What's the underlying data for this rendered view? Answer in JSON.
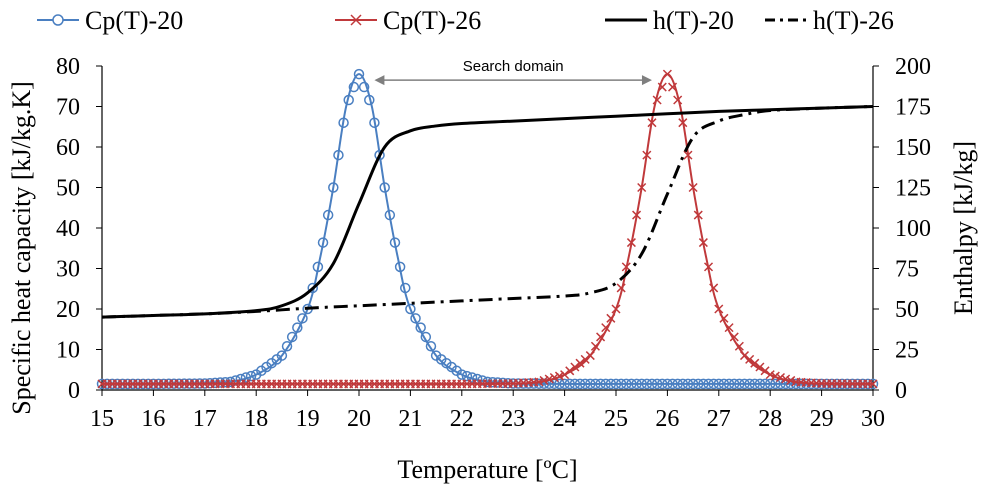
{
  "chart_data": {
    "type": "line",
    "x_axis": {
      "label": "Temperature [ºC]",
      "range": [
        15,
        30
      ],
      "ticks": [
        15,
        16,
        17,
        18,
        19,
        20,
        21,
        22,
        23,
        24,
        25,
        26,
        27,
        28,
        29,
        30
      ],
      "tick_labels": [
        "15",
        "16",
        "17",
        "18",
        "19",
        "20",
        "21",
        "22",
        "23",
        "24",
        "25",
        "26",
        "27",
        "28",
        "29",
        "30"
      ]
    },
    "y_left": {
      "label": "Specific  heat capacity  [kJ/kg.K]",
      "range": [
        0,
        80
      ],
      "ticks": [
        0,
        10,
        20,
        30,
        40,
        50,
        60,
        70,
        80
      ],
      "tick_labels": [
        "0",
        "10",
        "20",
        "30",
        "40",
        "50",
        "60",
        "70",
        "80"
      ]
    },
    "y_right": {
      "label": "Enthalpy  [kJ/kg]",
      "range": [
        0,
        200
      ],
      "ticks": [
        0,
        25,
        50,
        75,
        100,
        125,
        150,
        175,
        200
      ],
      "tick_labels": [
        "0",
        "25",
        "50",
        "75",
        "100",
        "125",
        "150",
        "175",
        "200"
      ]
    },
    "grid": false,
    "legend_position": "top",
    "series": [
      {
        "name": "Cp(T)-20",
        "axis": "left",
        "color": "#4a7fc1",
        "marker": "circle",
        "line": "solid",
        "x": [
          15,
          16,
          17,
          17.5,
          18,
          18.5,
          19,
          19.25,
          19.5,
          19.75,
          20,
          20.25,
          20.5,
          20.75,
          21,
          21.5,
          22,
          22.5,
          23,
          24,
          25,
          26,
          27,
          28,
          29,
          30
        ],
        "y": [
          1.5,
          1.5,
          1.6,
          2.0,
          3.8,
          8.5,
          20,
          33,
          50,
          70,
          78,
          70,
          50,
          33,
          20,
          8.5,
          3.8,
          2.0,
          1.6,
          1.5,
          1.5,
          1.5,
          1.5,
          1.5,
          1.5,
          1.5
        ]
      },
      {
        "name": "Cp(T)-26",
        "axis": "left",
        "color": "#c0393b",
        "marker": "x",
        "line": "solid",
        "x": [
          15,
          16,
          17,
          18,
          19,
          20,
          21,
          22,
          23,
          23.5,
          24,
          24.5,
          25,
          25.25,
          25.5,
          25.75,
          26,
          26.25,
          26.5,
          26.75,
          27,
          27.5,
          28,
          28.5,
          29,
          30
        ],
        "y": [
          1.5,
          1.5,
          1.5,
          1.5,
          1.5,
          1.5,
          1.5,
          1.5,
          1.6,
          2.0,
          3.8,
          8.5,
          20,
          33,
          50,
          70,
          78,
          70,
          50,
          33,
          20,
          8.5,
          3.8,
          2.0,
          1.6,
          1.5
        ]
      },
      {
        "name": "h(T)-20",
        "axis": "right",
        "color": "#000000",
        "line": "solid",
        "x": [
          15,
          16,
          17,
          18,
          18.5,
          19,
          19.5,
          20,
          20.5,
          21,
          21.5,
          22,
          23,
          24,
          25,
          26,
          27,
          28,
          29,
          30
        ],
        "y": [
          45,
          46,
          47,
          49,
          52,
          60,
          78,
          115,
          150,
          160,
          163,
          164.5,
          166,
          167.5,
          169,
          170.5,
          172,
          173,
          174,
          175
        ]
      },
      {
        "name": "h(T)-26",
        "axis": "right",
        "color": "#000000",
        "line": "dash-dot",
        "x": [
          15,
          16,
          17,
          18,
          19,
          20,
          21,
          22,
          23,
          24,
          24.5,
          25,
          25.5,
          26,
          26.5,
          27,
          27.5,
          28,
          29,
          30
        ],
        "y": [
          45,
          46,
          47,
          48.5,
          50.5,
          52,
          53.5,
          55,
          56.5,
          58,
          60,
          66,
          84,
          121,
          156,
          166,
          170,
          172.5,
          174,
          175
        ]
      }
    ],
    "annotations": [
      {
        "text": "Search domain",
        "type": "double-arrow",
        "x_from": 20.3,
        "x_to": 25.7,
        "y_left": 76.5
      }
    ]
  }
}
